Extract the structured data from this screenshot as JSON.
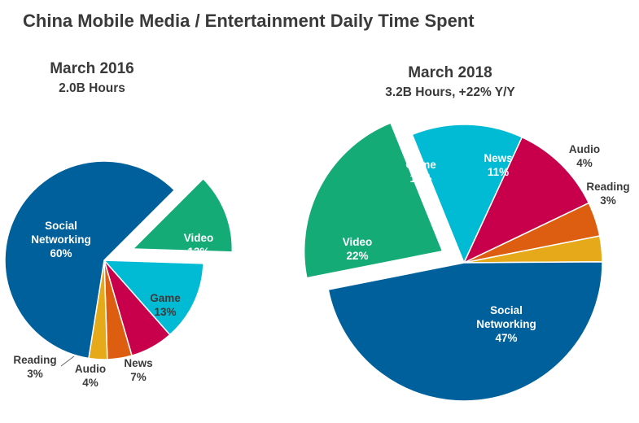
{
  "title": "China Mobile Media / Entertainment Daily Time Spent",
  "colors": {
    "Social Networking": "#00609c",
    "Video": "#14ab77",
    "Game": "#00bbd3",
    "News": "#c8004b",
    "Audio": "#dd5e10",
    "Reading": "#e6a91a"
  },
  "chart_data": [
    {
      "type": "pie",
      "title": "March 2016",
      "subtitle": "2.0B Hours",
      "categories": [
        "Social Networking",
        "Video",
        "Game",
        "News",
        "Audio",
        "Reading"
      ],
      "values": [
        60,
        13,
        13,
        7,
        4,
        3
      ],
      "labels": [
        {
          "name": "Social",
          "name2": "Networking",
          "pct": "60%"
        },
        {
          "name": "Video",
          "pct": "13%"
        },
        {
          "name": "Game",
          "pct": "13%"
        },
        {
          "name": "News",
          "pct": "7%"
        },
        {
          "name": "Audio",
          "pct": "4%"
        },
        {
          "name": "Reading",
          "pct": "3%"
        }
      ],
      "exploded": "Video"
    },
    {
      "type": "pie",
      "title": "March 2018",
      "subtitle": "3.2B Hours, +22% Y/Y",
      "categories": [
        "Social Networking",
        "Video",
        "Game",
        "News",
        "Audio",
        "Reading"
      ],
      "values": [
        47,
        22,
        13,
        11,
        4,
        3
      ],
      "labels": [
        {
          "name": "Social",
          "name2": "Networking",
          "pct": "47%"
        },
        {
          "name": "Video",
          "pct": "22%"
        },
        {
          "name": "Game",
          "pct": "13%"
        },
        {
          "name": "News",
          "pct": "11%"
        },
        {
          "name": "Audio",
          "pct": "4%"
        },
        {
          "name": "Reading",
          "pct": "3%"
        }
      ],
      "exploded": "Video"
    }
  ]
}
